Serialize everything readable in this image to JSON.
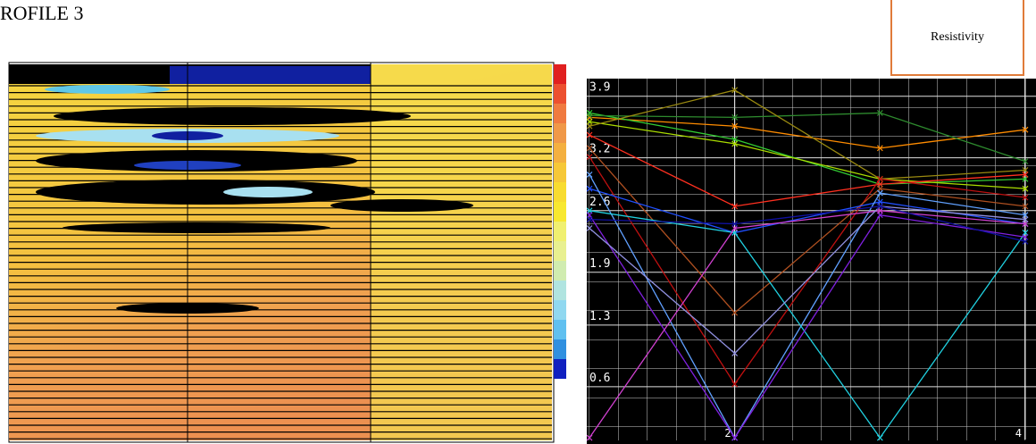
{
  "header": {
    "title": "ROFILE 3"
  },
  "sidebox": {
    "label": "Resistivity"
  },
  "chart_data": {
    "type": "line",
    "x": [
      1,
      2,
      3,
      4
    ],
    "xlim": [
      1,
      4
    ],
    "xticks": [
      2,
      4
    ],
    "ylim": [
      0,
      4.1
    ],
    "yticks": [
      0.6,
      1.3,
      1.9,
      2.6,
      3.2,
      3.9
    ],
    "grid": true,
    "series": [
      {
        "color": "#ff8c00",
        "values": [
          3.66,
          3.56,
          3.31,
          3.52
        ]
      },
      {
        "color": "#33cc33",
        "values": [
          3.71,
          3.41,
          2.9,
          2.96
        ]
      },
      {
        "color": "#aadd00",
        "values": [
          3.61,
          3.36,
          2.96,
          2.85
        ]
      },
      {
        "color": "#2e8b2e",
        "values": [
          3.68,
          3.66,
          3.71,
          3.16
        ]
      },
      {
        "color": "#9a8a10",
        "values": [
          3.56,
          3.97,
          2.96,
          3.06
        ]
      },
      {
        "color": "#ff3020",
        "values": [
          3.46,
          2.65,
          2.9,
          3.01
        ]
      },
      {
        "color": "#c01010",
        "values": [
          3.21,
          0.63,
          2.96,
          2.75
        ]
      },
      {
        "color": "#b05020",
        "values": [
          3.31,
          1.44,
          2.85,
          2.65
        ]
      },
      {
        "color": "#2050ff",
        "values": [
          2.85,
          2.35,
          2.7,
          2.45
        ]
      },
      {
        "color": "#60a0ff",
        "values": [
          3.01,
          0.02,
          2.8,
          2.55
        ]
      },
      {
        "color": "#20d0e0",
        "values": [
          2.6,
          2.35,
          0.02,
          2.35
        ]
      },
      {
        "color": "#8020e0",
        "values": [
          2.55,
          0.02,
          2.55,
          2.3
        ]
      },
      {
        "color": "#d040d0",
        "values": [
          0.02,
          2.4,
          2.6,
          2.45
        ]
      },
      {
        "color": "#9090e0",
        "values": [
          2.4,
          0.98,
          2.65,
          2.5
        ]
      },
      {
        "color": "#1010a0",
        "values": [
          2.5,
          2.45,
          2.65,
          2.25
        ]
      }
    ]
  }
}
